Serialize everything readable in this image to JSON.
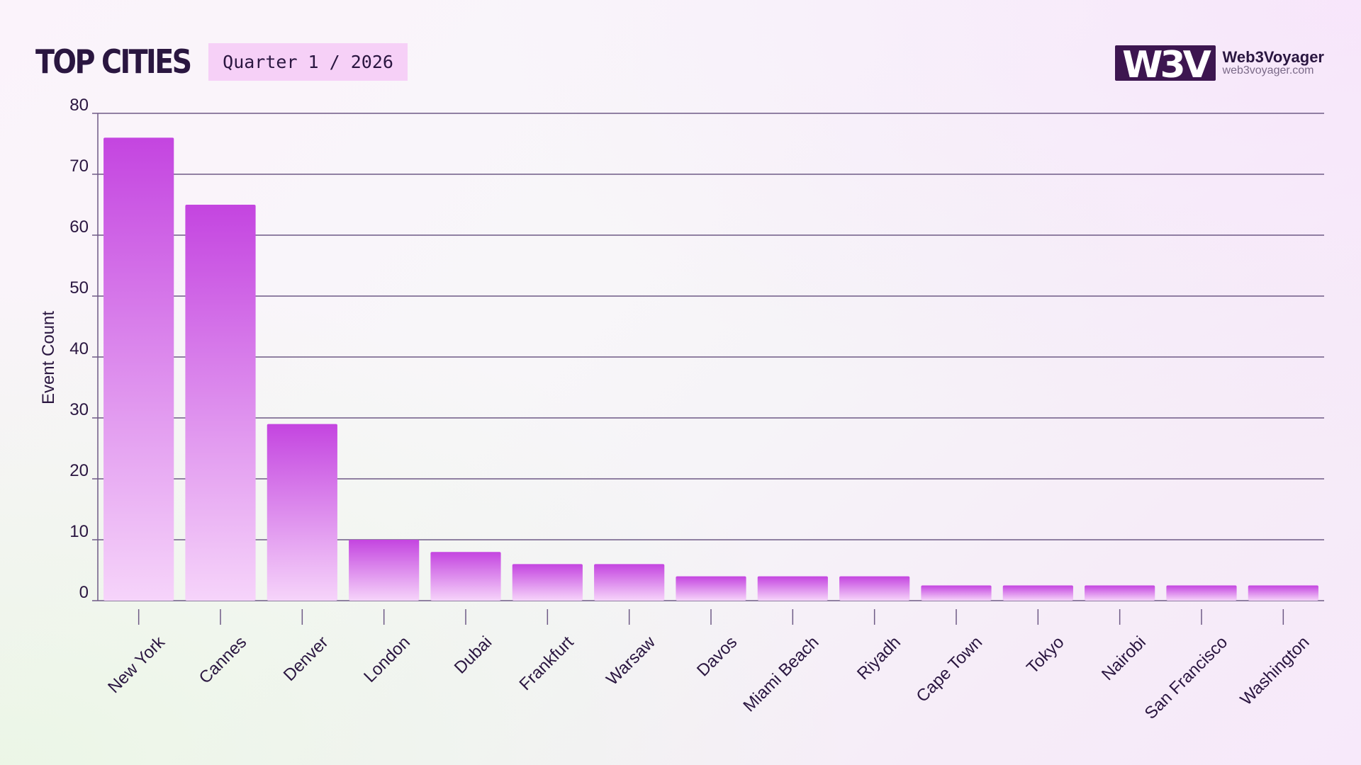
{
  "header": {
    "title": "TOP CITIES",
    "period": "Quarter 1 / 2026"
  },
  "brand": {
    "logo_text": "W3V",
    "name": "Web3Voyager",
    "url": "web3voyager.com",
    "logo_color": "#3d1650"
  },
  "colors": {
    "bar_top": "#c445e0",
    "bar_bottom": "#f6d4fa",
    "grid": "#6e5a86",
    "text": "#2a1640"
  },
  "chart_data": {
    "type": "bar",
    "ylabel": "Event Count",
    "xlabel": "",
    "ylim": [
      0,
      80
    ],
    "yticks": [
      0,
      10,
      20,
      30,
      40,
      50,
      60,
      70,
      80
    ],
    "grid": true,
    "categories": [
      "New York",
      "Cannes",
      "Denver",
      "London",
      "Dubai",
      "Frankfurt",
      "Warsaw",
      "Davos",
      "Miami Beach",
      "Riyadh",
      "Cape Town",
      "Tokyo",
      "Nairobi",
      "San Francisco",
      "Washington"
    ],
    "values": [
      76,
      65,
      29,
      10,
      8,
      6,
      6,
      4,
      4,
      4,
      2.5,
      2.5,
      2.5,
      2.5,
      2.5
    ]
  }
}
